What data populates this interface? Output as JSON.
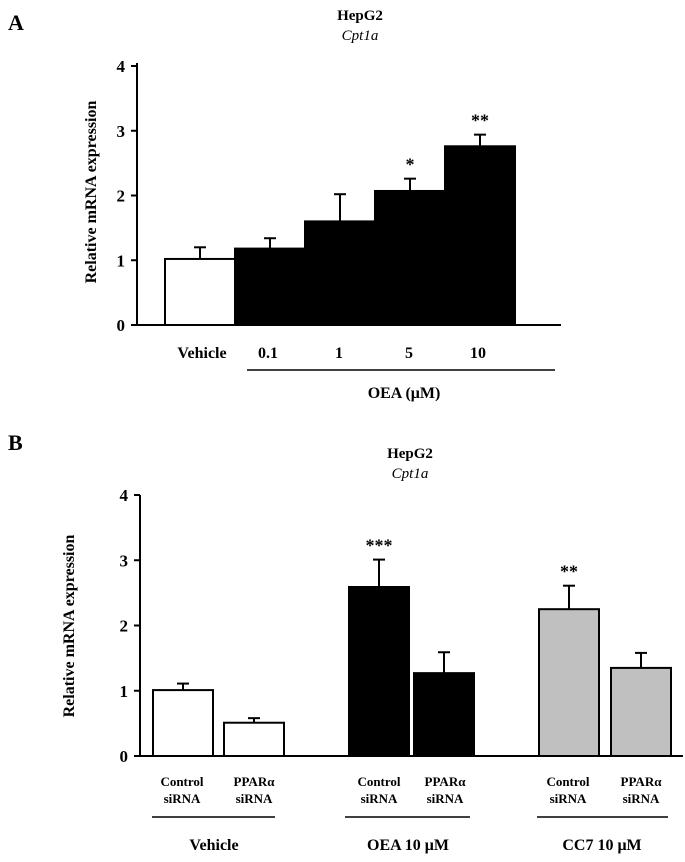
{
  "chart_data": [
    {
      "type": "bar",
      "panel_label": "A",
      "title": "HepG2",
      "subtitle": "Cpt1a",
      "ylabel": "Relative  mRNA expression",
      "ylim": [
        0,
        4
      ],
      "yticks": [
        "0",
        "1",
        "2",
        "3",
        "4"
      ],
      "categories": [
        "Vehicle",
        "0.1",
        "1",
        "5",
        "10"
      ],
      "values": [
        1.02,
        1.18,
        1.6,
        2.07,
        2.76
      ],
      "errors": [
        0.18,
        0.16,
        0.42,
        0.19,
        0.18
      ],
      "significance": [
        "",
        "",
        "",
        "*",
        "**"
      ],
      "fills": [
        "#ffffff",
        "#000000",
        "#000000",
        "#000000",
        "#000000"
      ],
      "group_label": "OEA (μM)"
    },
    {
      "type": "bar",
      "panel_label": "B",
      "title": "HepG2",
      "subtitle": "Cpt1a",
      "ylabel": "Relative mRNA expression",
      "ylim": [
        0,
        4
      ],
      "yticks": [
        "0",
        "1",
        "2",
        "3",
        "4"
      ],
      "categories": [
        [
          "Control",
          "siRNA"
        ],
        [
          "PPARα",
          "siRNA"
        ],
        [
          "Control",
          "siRNA"
        ],
        [
          "PPARα",
          "siRNA"
        ],
        [
          "Control",
          "siRNA"
        ],
        [
          "PPARα",
          "siRNA"
        ]
      ],
      "values": [
        1.01,
        0.51,
        2.59,
        1.27,
        2.25,
        1.35
      ],
      "errors": [
        0.1,
        0.07,
        0.42,
        0.32,
        0.36,
        0.23
      ],
      "significance": [
        "",
        "",
        "***",
        "",
        "**",
        ""
      ],
      "fills": [
        "#ffffff",
        "#ffffff",
        "#000000",
        "#000000",
        "#c0c0c0",
        "#c0c0c0"
      ],
      "groups": [
        "Vehicle",
        "OEA 10 μM",
        "CC7 10 μM"
      ]
    }
  ]
}
